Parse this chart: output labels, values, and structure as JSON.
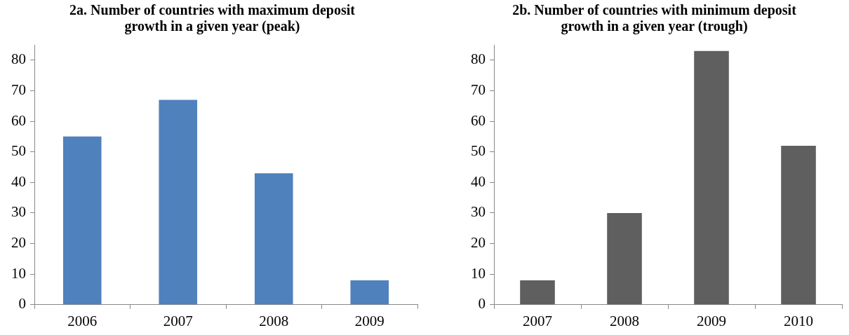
{
  "chart_data": [
    {
      "type": "bar",
      "title": "2a. Number of countries with maximum deposit growth in a given year (peak)",
      "categories": [
        "2006",
        "2007",
        "2008",
        "2009"
      ],
      "values": [
        55,
        67,
        43,
        8
      ],
      "color": "#4f81bd",
      "ylim": [
        0,
        85
      ],
      "yticks": [
        0,
        10,
        20,
        30,
        40,
        50,
        60,
        70,
        80
      ],
      "grid": false,
      "legend": false
    },
    {
      "type": "bar",
      "title": "2b. Number of countries with minimum deposit growth in a given year (trough)",
      "categories": [
        "2007",
        "2008",
        "2009",
        "2010"
      ],
      "values": [
        8,
        30,
        83,
        52
      ],
      "color": "#5f5f5f",
      "ylim": [
        0,
        85
      ],
      "yticks": [
        0,
        10,
        20,
        30,
        40,
        50,
        60,
        70,
        80
      ],
      "grid": false,
      "legend": false
    }
  ]
}
